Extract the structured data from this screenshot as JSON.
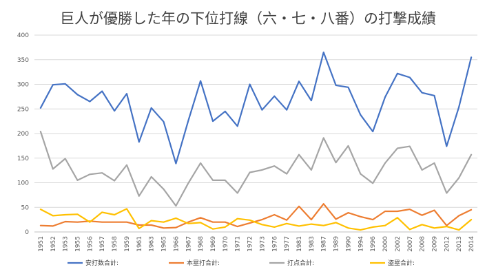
{
  "chart_data": {
    "type": "line",
    "title": "巨人が優勝した年の下位打線（六・七・八番）の打撃成績",
    "xlabel": "",
    "ylabel": "",
    "ylim": [
      0,
      400
    ],
    "yticks": [
      0,
      50,
      100,
      150,
      200,
      250,
      300,
      350,
      400
    ],
    "grid": true,
    "legend_position": "bottom",
    "categories": [
      "1951",
      "1952",
      "1953",
      "1955",
      "1956",
      "1957",
      "1958",
      "1959",
      "1961",
      "1963",
      "1965",
      "1966",
      "1967",
      "1968",
      "1969",
      "1970",
      "1971",
      "1972",
      "1973",
      "1976",
      "1977",
      "1981",
      "1983",
      "1987",
      "1989",
      "1990",
      "1994",
      "1996",
      "2000",
      "2002",
      "2007",
      "2008",
      "2009",
      "2012",
      "2013",
      "2014"
    ],
    "series": [
      {
        "name": "安打数合計:",
        "color": "#4472C4",
        "values": [
          252,
          299,
          301,
          279,
          265,
          286,
          246,
          281,
          183,
          252,
          224,
          139,
          226,
          307,
          225,
          245,
          215,
          300,
          248,
          276,
          248,
          306,
          267,
          365,
          298,
          294,
          238,
          204,
          274,
          322,
          314,
          283,
          277,
          174,
          254,
          355
        ]
      },
      {
        "name": "本塁打合計:",
        "color": "#ED7D31",
        "values": [
          13,
          12,
          21,
          20,
          22,
          20,
          20,
          20,
          14,
          14,
          8,
          9,
          20,
          29,
          20,
          20,
          11,
          18,
          25,
          35,
          24,
          52,
          25,
          57,
          26,
          39,
          31,
          25,
          42,
          42,
          46,
          34,
          44,
          13,
          33,
          45
        ]
      },
      {
        "name": "打点合計:",
        "color": "#A5A5A5",
        "values": [
          204,
          128,
          149,
          105,
          117,
          120,
          104,
          136,
          73,
          112,
          87,
          53,
          99,
          140,
          105,
          105,
          79,
          121,
          126,
          134,
          118,
          157,
          126,
          191,
          141,
          175,
          118,
          99,
          140,
          170,
          174,
          126,
          140,
          79,
          110,
          157
        ]
      },
      {
        "name": "盗塁合計:",
        "color": "#FFC000",
        "values": [
          46,
          33,
          35,
          36,
          20,
          40,
          35,
          47,
          7,
          23,
          20,
          28,
          17,
          19,
          6,
          10,
          27,
          24,
          15,
          10,
          17,
          12,
          16,
          13,
          19,
          8,
          4,
          10,
          13,
          29,
          5,
          15,
          8,
          11,
          4,
          25
        ]
      }
    ]
  }
}
